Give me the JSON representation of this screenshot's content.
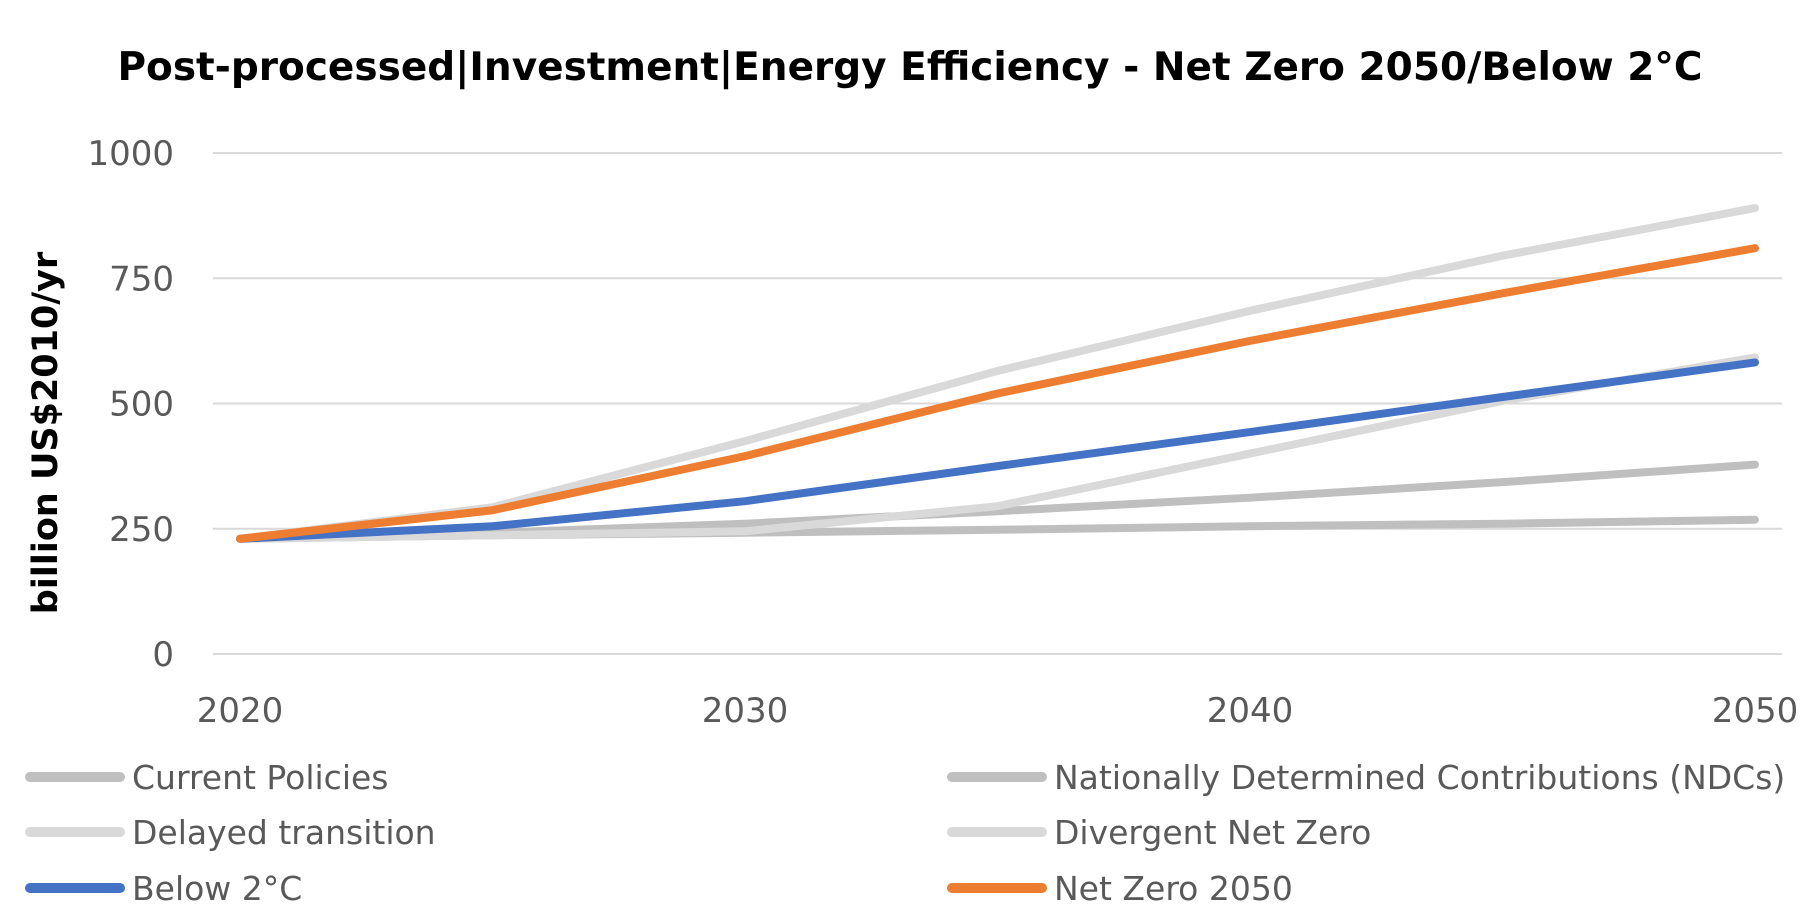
{
  "chart_data": {
    "type": "line",
    "title": "Post-processed|Investment|Energy Efficiency - Net Zero 2050/Below 2°C",
    "xlabel": "",
    "ylabel": "billion US$2010/yr",
    "x": [
      2020,
      2025,
      2030,
      2035,
      2040,
      2045,
      2050
    ],
    "xticks": [
      2020,
      2030,
      2040,
      2050
    ],
    "yticks": [
      0,
      250,
      500,
      750,
      1000
    ],
    "xlim": [
      2020,
      2050
    ],
    "ylim": [
      0,
      1000
    ],
    "grid": "horizontal",
    "legend_position": "bottom",
    "series": [
      {
        "name": "Current Policies",
        "color": "#bfbfbf",
        "values": [
          230,
          237,
          242,
          248,
          255,
          260,
          268
        ]
      },
      {
        "name": "Nationally Determined Contributions (NDCs)",
        "color": "#bfbfbf",
        "values": [
          230,
          242,
          260,
          285,
          312,
          343,
          378
        ]
      },
      {
        "name": "Delayed transition",
        "color": "#d9d9d9",
        "values": [
          230,
          237,
          245,
          295,
          400,
          505,
          592
        ]
      },
      {
        "name": "Divergent Net Zero",
        "color": "#d9d9d9",
        "values": [
          230,
          293,
          425,
          565,
          685,
          795,
          890
        ]
      },
      {
        "name": "Below 2°C",
        "color": "#4472c4",
        "values": [
          230,
          255,
          305,
          375,
          443,
          513,
          582
        ]
      },
      {
        "name": "Net Zero 2050",
        "color": "#ed7d31",
        "values": [
          230,
          287,
          395,
          520,
          625,
          720,
          810
        ]
      }
    ]
  }
}
